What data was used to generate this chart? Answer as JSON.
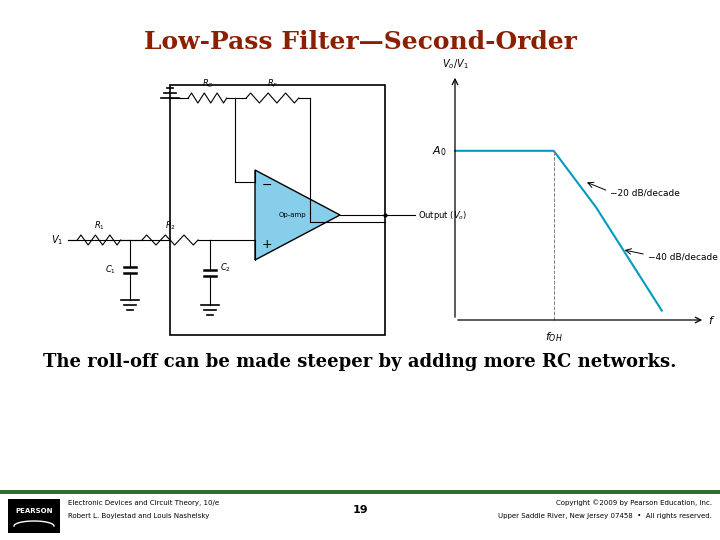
{
  "title": "Low-Pass Filter—Second-Order",
  "title_color": "#8B2000",
  "title_fontsize": 18,
  "body_text": "The roll-off can be made steeper by adding more RC networks.",
  "body_fontsize": 13,
  "footer_left_line1": "Electronic Devices and Circuit Theory, 10/e",
  "footer_left_line2": "Robert L. Boylestad and Louis Nashelsky",
  "footer_center": "19",
  "footer_right_line1": "Copyright ©2009 by Pearson Education, Inc.",
  "footer_right_line2": "Upper Saddle River, New Jersey 07458  •  All rights reserved.",
  "footer_bar_color": "#2d6e2d",
  "bg_color": "#ffffff"
}
